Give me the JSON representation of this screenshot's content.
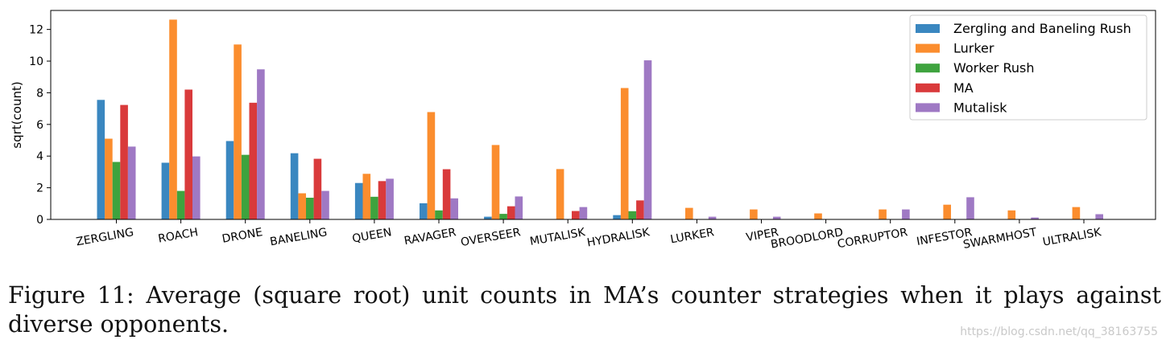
{
  "figure": {
    "caption": "Figure 11: Average (square root) unit counts in MA’s counter strategies when it plays against diverse opponents.",
    "watermark": "https://blog.csdn.net/qq_38163755"
  },
  "chart_data": {
    "type": "bar",
    "title": "",
    "xlabel": "",
    "ylabel": "sqrt(count)",
    "ylim": [
      0,
      13.2
    ],
    "yticks": [
      0,
      2,
      4,
      6,
      8,
      10,
      12
    ],
    "grid": false,
    "legend_position": "top-right",
    "categories": [
      "ZERGLING",
      "ROACH",
      "DRONE",
      "BANELING",
      "QUEEN",
      "RAVAGER",
      "OVERSEER",
      "MUTALISK",
      "HYDRALISK",
      "LURKER",
      "VIPER",
      "BROODLORD",
      "CORRUPTOR",
      "INFESTOR",
      "SWARMHOST",
      "ULTRALISK"
    ],
    "series": [
      {
        "name": "Zergling and Baneling Rush",
        "color": "#3a87c0",
        "values": [
          7.55,
          3.58,
          4.95,
          4.18,
          2.3,
          1.02,
          0.17,
          0,
          0.27,
          0,
          0,
          0,
          0,
          0,
          0,
          0
        ]
      },
      {
        "name": "Lurker",
        "color": "#fb8d2e",
        "values": [
          5.1,
          12.62,
          11.05,
          1.65,
          2.88,
          6.78,
          4.7,
          3.18,
          8.3,
          0.73,
          0.63,
          0.38,
          0.63,
          0.93,
          0.57,
          0.78
        ]
      },
      {
        "name": "Worker Rush",
        "color": "#3ea33e",
        "values": [
          3.63,
          1.8,
          4.08,
          1.37,
          1.43,
          0.57,
          0.35,
          0,
          0.52,
          0,
          0,
          0,
          0,
          0,
          0,
          0
        ]
      },
      {
        "name": "MA",
        "color": "#d93a3b",
        "values": [
          7.23,
          8.2,
          7.37,
          3.83,
          2.42,
          3.17,
          0.83,
          0.53,
          1.2,
          0,
          0,
          0,
          0,
          0,
          0,
          0
        ]
      },
      {
        "name": "Mutalisk",
        "color": "#9f79c4",
        "values": [
          4.6,
          3.98,
          9.48,
          1.8,
          2.57,
          1.33,
          1.45,
          0.78,
          10.05,
          0.17,
          0.17,
          0,
          0.63,
          1.4,
          0.12,
          0.33
        ]
      }
    ]
  }
}
